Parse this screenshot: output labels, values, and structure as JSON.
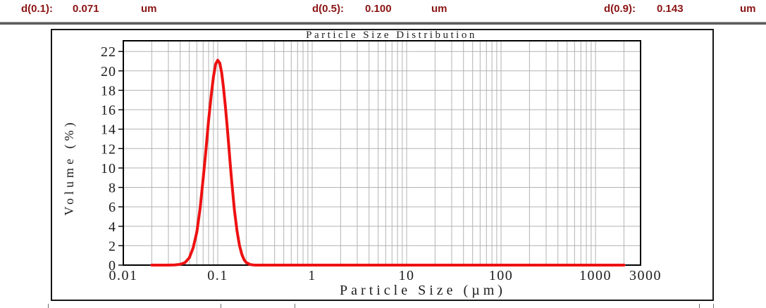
{
  "stats": {
    "items": [
      {
        "label": "d(0.1):",
        "value": "0.071",
        "unit": "um"
      },
      {
        "label": "d(0.5):",
        "value": "0.100",
        "unit": "um"
      },
      {
        "label": "d(0.9):",
        "value": "0.143",
        "unit": "um"
      }
    ],
    "text_color": "#8B1414"
  },
  "chart_data": {
    "type": "line",
    "title": "Particle Size Distribution",
    "xlabel": "Particle Size (µm)",
    "ylabel": "Volume (%)",
    "x_scale": "log",
    "xlim": [
      0.01,
      3000
    ],
    "ylim": [
      0,
      23.1
    ],
    "x_ticks": [
      0.01,
      0.1,
      1,
      10,
      100,
      1000,
      3000
    ],
    "x_tick_labels": [
      "0.01",
      "0.1",
      "1",
      "10",
      "100",
      "1000",
      "3000"
    ],
    "y_ticks": [
      0,
      2,
      4,
      6,
      8,
      10,
      12,
      14,
      16,
      18,
      20,
      22
    ],
    "grid": true,
    "grid_color": "#b3b3b3",
    "axis_color": "#000000",
    "line_color": "#ee1111",
    "legend": "none",
    "series": [
      {
        "name": "Volume (%)",
        "peak": {
          "x": 0.1,
          "y": 21.1
        },
        "data_range_um": [
          0.02,
          2000
        ],
        "points": [
          [
            0.02,
            0
          ],
          [
            0.025,
            0
          ],
          [
            0.03,
            0
          ],
          [
            0.035,
            0.02
          ],
          [
            0.04,
            0.08
          ],
          [
            0.045,
            0.25
          ],
          [
            0.05,
            0.75
          ],
          [
            0.055,
            1.8
          ],
          [
            0.06,
            3.4
          ],
          [
            0.065,
            5.8
          ],
          [
            0.07,
            8.9
          ],
          [
            0.075,
            11.9
          ],
          [
            0.08,
            14.9
          ],
          [
            0.085,
            17.4
          ],
          [
            0.09,
            19.4
          ],
          [
            0.095,
            20.7
          ],
          [
            0.1,
            21.1
          ],
          [
            0.105,
            20.8
          ],
          [
            0.11,
            19.8
          ],
          [
            0.115,
            18.3
          ],
          [
            0.12,
            16.5
          ],
          [
            0.125,
            14.6
          ],
          [
            0.13,
            12.6
          ],
          [
            0.135,
            10.6
          ],
          [
            0.14,
            8.8
          ],
          [
            0.15,
            5.7
          ],
          [
            0.16,
            3.5
          ],
          [
            0.17,
            2.0
          ],
          [
            0.18,
            1.1
          ],
          [
            0.19,
            0.55
          ],
          [
            0.2,
            0.27
          ],
          [
            0.22,
            0.06
          ],
          [
            0.24,
            0.01
          ],
          [
            0.26,
            0
          ],
          [
            0.3,
            0
          ],
          [
            0.5,
            0
          ],
          [
            1,
            0
          ],
          [
            2,
            0
          ],
          [
            5,
            0
          ],
          [
            10,
            0
          ],
          [
            50,
            0
          ],
          [
            100,
            0
          ],
          [
            500,
            0
          ],
          [
            1000,
            0
          ],
          [
            1500,
            0
          ],
          [
            2000,
            0
          ]
        ]
      }
    ]
  }
}
